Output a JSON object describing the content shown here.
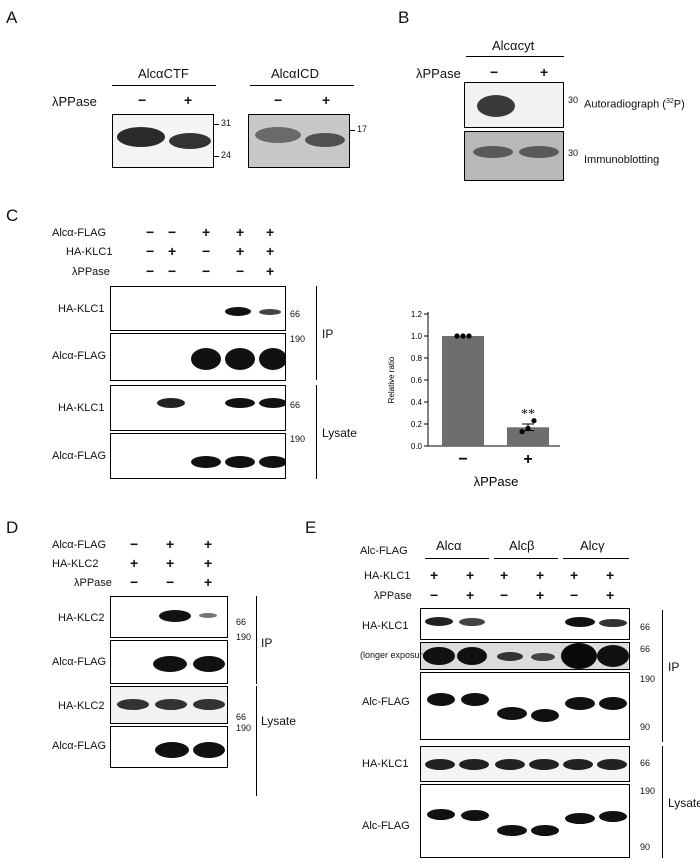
{
  "panels": {
    "A": {
      "letter": "A",
      "group1": "AlcαCTF",
      "group2": "AlcαICD",
      "treatment": "λPPase",
      "signs": [
        "−",
        "+",
        "−",
        "+"
      ],
      "mw": [
        "31",
        "24",
        "17"
      ]
    },
    "B": {
      "letter": "B",
      "group": "Alcαcyt",
      "treatment": "λPPase",
      "signs": [
        "−",
        "+"
      ],
      "mw": [
        "30",
        "30"
      ],
      "label_autoradiograph": "Autoradiograph (",
      "label_autoradiograph_sup": "32",
      "label_autoradiograph_end": "P)",
      "label_immunoblotting": "Immunoblotting"
    },
    "C": {
      "letter": "C",
      "rows": [
        "Alcα-FLAG",
        "HA-KLC1",
        "λPPase"
      ],
      "signs": [
        [
          "−",
          "−",
          "+",
          "+",
          "+"
        ],
        [
          "−",
          "+",
          "−",
          "+",
          "+"
        ],
        [
          "−",
          "−",
          "−",
          "−",
          "+"
        ]
      ],
      "blot_labels": [
        "HA-KLC1",
        "Alcα-FLAG",
        "HA-KLC1",
        "Alcα-FLAG"
      ],
      "mw": [
        "66",
        "190",
        "66",
        "190"
      ],
      "groups": [
        "IP",
        "Lysate"
      ]
    },
    "D": {
      "letter": "D",
      "rows": [
        "Alcα-FLAG",
        "HA-KLC2",
        "λPPase"
      ],
      "signs": [
        [
          "−",
          "+",
          "+"
        ],
        [
          "+",
          "+",
          "+"
        ],
        [
          "−",
          "−",
          "+"
        ]
      ],
      "blot_labels": [
        "HA-KLC2",
        "Alcα-FLAG",
        "HA-KLC2",
        "Alcα-FLAG"
      ],
      "mw": [
        "66",
        "190",
        "66",
        "190"
      ],
      "groups": [
        "IP",
        "Lysate"
      ]
    },
    "E": {
      "letter": "E",
      "row0": "Alc-FLAG",
      "groups_top": [
        "Alcα",
        "Alcβ",
        "Alcγ"
      ],
      "rows": [
        "HA-KLC1",
        "λPPase"
      ],
      "signs": [
        [
          "+",
          "+",
          "+",
          "+",
          "+",
          "+"
        ],
        [
          "−",
          "+",
          "−",
          "+",
          "−",
          "+"
        ]
      ],
      "blot_labels": [
        "HA-KLC1",
        "(longer exposure)",
        "Alc-FLAG",
        "HA-KLC1",
        "Alc-FLAG"
      ],
      "mw": [
        "66",
        "66",
        "190",
        "90",
        "66",
        "190",
        "90"
      ],
      "groups": [
        "IP",
        "Lysate"
      ]
    }
  },
  "chart_data": {
    "type": "bar",
    "categories": [
      "−",
      "+"
    ],
    "values": [
      1.0,
      0.17
    ],
    "errors": [
      0.0,
      0.03
    ],
    "points": [
      [
        1.0,
        1.0,
        1.0
      ],
      [
        0.13,
        0.16,
        0.23
      ]
    ],
    "significance": [
      "",
      "**"
    ],
    "xlabel": "λPPase",
    "ylabel": "Relative ratio",
    "ylim": [
      0,
      1.2
    ],
    "yticks": [
      "0.0",
      "0.2",
      "0.4",
      "0.6",
      "0.8",
      "1.0",
      "1.2"
    ],
    "bar_color": "#6e6e6e"
  }
}
